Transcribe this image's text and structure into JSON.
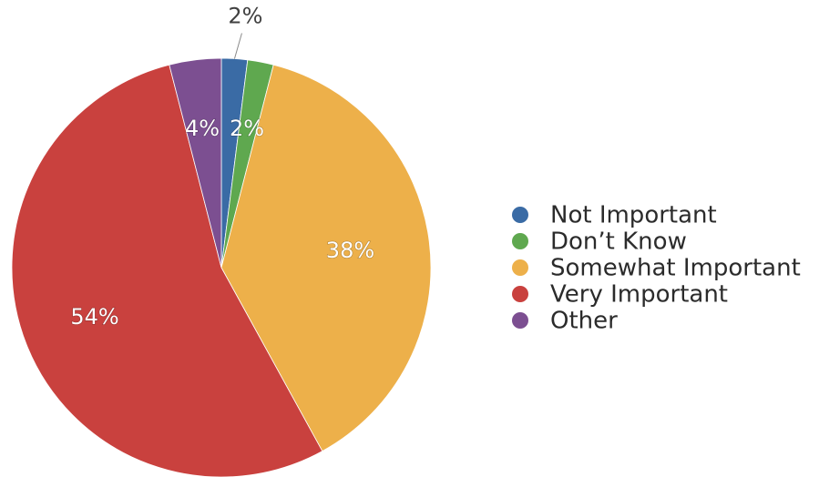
{
  "chart_data": {
    "type": "pie",
    "categories": [
      "Not Important",
      "Don’t Know",
      "Somewhat Important",
      "Very Important",
      "Other"
    ],
    "values": [
      2,
      2,
      38,
      54,
      4
    ],
    "labels": [
      "2%",
      "2%",
      "38%",
      "54%",
      "4%"
    ],
    "colors": [
      "#3A6BA5",
      "#5FA84F",
      "#EDB04A",
      "#C9413E",
      "#7C4F91"
    ],
    "legend_position": "right"
  }
}
